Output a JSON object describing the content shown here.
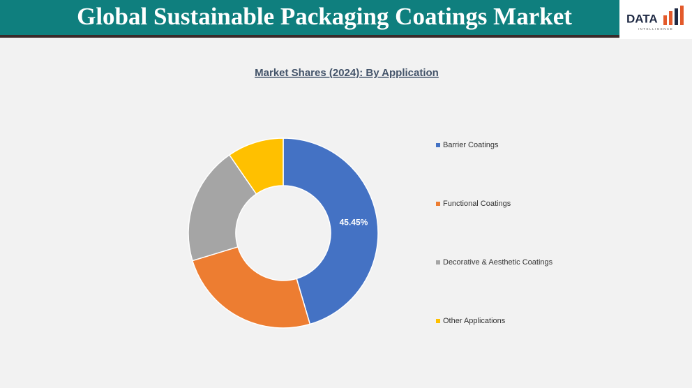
{
  "header": {
    "title": "Global Sustainable Packaging Coatings Market",
    "logo": "DATA",
    "logo_sub": "INTELLIGENCE"
  },
  "chart_data": {
    "type": "donut",
    "title": "Market Shares (2024): By Application",
    "categories": [
      "Barrier Coatings",
      "Functional Coatings",
      "Decorative & Aesthetic Coatings",
      "Other Applications"
    ],
    "values": [
      45.45,
      24.85,
      20.1,
      9.6
    ],
    "value_labels": [
      "45.45%",
      null,
      null,
      null
    ],
    "colors": [
      "#4472c4",
      "#ed7d31",
      "#a5a5a5",
      "#ffc000"
    ]
  }
}
